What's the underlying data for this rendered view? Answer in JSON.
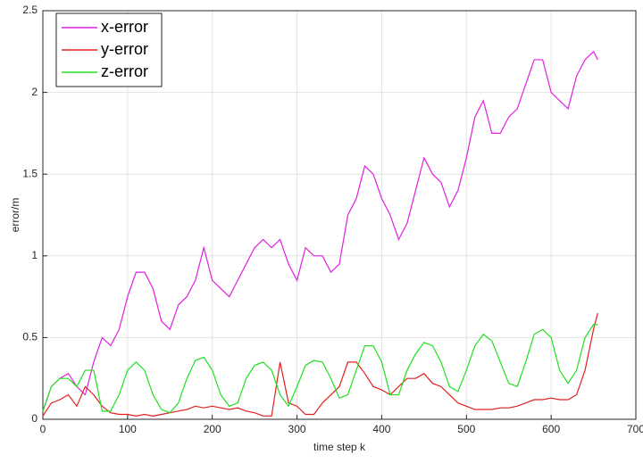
{
  "chart_data": {
    "type": "line",
    "xlabel": "time step k",
    "ylabel": "error/m",
    "x": [
      0,
      10,
      20,
      30,
      40,
      50,
      60,
      70,
      80,
      90,
      100,
      110,
      120,
      130,
      140,
      150,
      160,
      170,
      180,
      190,
      200,
      210,
      220,
      230,
      240,
      250,
      260,
      270,
      280,
      290,
      300,
      310,
      320,
      330,
      340,
      350,
      360,
      370,
      380,
      390,
      400,
      410,
      420,
      430,
      440,
      450,
      460,
      470,
      480,
      490,
      500,
      510,
      520,
      530,
      540,
      550,
      560,
      570,
      580,
      590,
      600,
      610,
      620,
      630,
      640,
      650,
      655
    ],
    "series": [
      {
        "name": "x-error",
        "color": "#e020e0",
        "values": [
          0.05,
          0.2,
          0.25,
          0.28,
          0.2,
          0.15,
          0.35,
          0.5,
          0.45,
          0.55,
          0.75,
          0.9,
          0.9,
          0.8,
          0.6,
          0.55,
          0.7,
          0.75,
          0.85,
          1.05,
          0.85,
          0.8,
          0.75,
          0.85,
          0.95,
          1.05,
          1.1,
          1.05,
          1.1,
          0.95,
          0.85,
          1.05,
          1.0,
          1.0,
          0.9,
          0.95,
          1.25,
          1.35,
          1.55,
          1.5,
          1.35,
          1.25,
          1.1,
          1.2,
          1.4,
          1.6,
          1.5,
          1.45,
          1.3,
          1.4,
          1.6,
          1.85,
          1.95,
          1.75,
          1.75,
          1.85,
          1.9,
          2.05,
          2.2,
          2.2,
          2.0,
          1.95,
          1.9,
          2.1,
          2.2,
          2.25,
          2.2
        ]
      },
      {
        "name": "y-error",
        "color": "#e02020",
        "values": [
          0.02,
          0.1,
          0.12,
          0.15,
          0.08,
          0.2,
          0.15,
          0.08,
          0.04,
          0.03,
          0.03,
          0.02,
          0.03,
          0.02,
          0.03,
          0.04,
          0.05,
          0.06,
          0.08,
          0.07,
          0.08,
          0.07,
          0.06,
          0.07,
          0.05,
          0.04,
          0.02,
          0.02,
          0.35,
          0.1,
          0.08,
          0.03,
          0.03,
          0.1,
          0.15,
          0.2,
          0.35,
          0.35,
          0.28,
          0.2,
          0.18,
          0.15,
          0.2,
          0.25,
          0.25,
          0.28,
          0.22,
          0.2,
          0.15,
          0.1,
          0.08,
          0.06,
          0.06,
          0.06,
          0.07,
          0.07,
          0.08,
          0.1,
          0.12,
          0.12,
          0.13,
          0.12,
          0.12,
          0.15,
          0.3,
          0.55,
          0.65
        ]
      },
      {
        "name": "z-error",
        "color": "#20e020",
        "values": [
          0.05,
          0.2,
          0.25,
          0.25,
          0.2,
          0.3,
          0.3,
          0.05,
          0.05,
          0.15,
          0.3,
          0.35,
          0.3,
          0.15,
          0.06,
          0.04,
          0.1,
          0.25,
          0.36,
          0.38,
          0.3,
          0.15,
          0.08,
          0.1,
          0.25,
          0.33,
          0.35,
          0.3,
          0.15,
          0.08,
          0.2,
          0.33,
          0.36,
          0.35,
          0.25,
          0.13,
          0.15,
          0.3,
          0.45,
          0.45,
          0.35,
          0.15,
          0.15,
          0.3,
          0.4,
          0.47,
          0.45,
          0.35,
          0.2,
          0.17,
          0.3,
          0.45,
          0.52,
          0.48,
          0.35,
          0.22,
          0.2,
          0.35,
          0.52,
          0.55,
          0.5,
          0.3,
          0.22,
          0.3,
          0.5,
          0.58,
          0.58
        ]
      }
    ],
    "xlim": [
      0,
      700
    ],
    "xticks": [
      0,
      100,
      200,
      300,
      400,
      500,
      600,
      700
    ],
    "ylim": [
      0,
      2.5
    ],
    "yticks": [
      0,
      0.5,
      1,
      1.5,
      2,
      2.5
    ],
    "grid": true,
    "legend": "upper left"
  }
}
